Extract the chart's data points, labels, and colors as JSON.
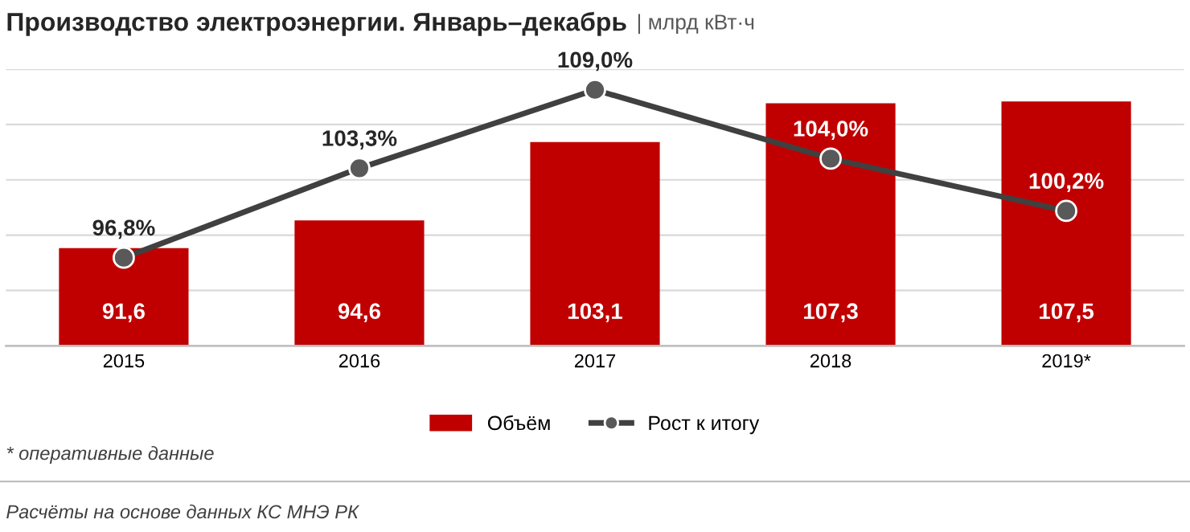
{
  "chart_data": {
    "type": "bar",
    "title": "Производство электроэнергии. Январь–декабрь",
    "subtitle": "| млрд кВт·ч",
    "categories": [
      "2015",
      "2016",
      "2017",
      "2018",
      "2019*"
    ],
    "series": [
      {
        "name": "Объём",
        "color": "#c00000",
        "values": [
          91.6,
          94.6,
          103.1,
          107.3,
          107.5
        ],
        "value_labels": [
          "91,6",
          "94,6",
          "103,1",
          "107,3",
          "107,5"
        ]
      },
      {
        "name": "Рост к итогу",
        "type": "line",
        "axis": "y2",
        "color": "#404040",
        "marker": "circle",
        "values": [
          96.8,
          103.3,
          109.0,
          104.0,
          100.2
        ],
        "value_labels": [
          "96,8%",
          "103,3%",
          "109,0%",
          "104,0%",
          "100,2%"
        ]
      }
    ],
    "ylim": [
      81,
      111
    ],
    "yticks": [
      {
        "value": 87,
        "label": null
      },
      {
        "value": 93,
        "label": null
      },
      {
        "value": 99,
        "label": null
      },
      {
        "value": 105,
        "label": null
      },
      {
        "value": 111,
        "label": null
      }
    ],
    "y2lim": [
      90.4,
      110.5
    ],
    "grid": "y",
    "legend": "bottom",
    "tick_labels": "x",
    "annotations": [
      "* оперативные данные",
      "Расчёты на основе данных КС МНЭ РК"
    ]
  }
}
